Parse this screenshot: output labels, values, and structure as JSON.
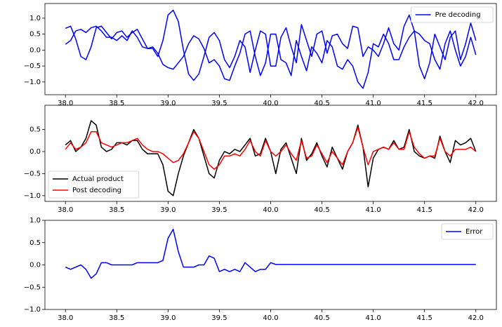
{
  "chart_data": [
    {
      "type": "line",
      "legend": "upper right",
      "x": [
        38.0,
        38.05,
        38.1,
        38.15,
        38.2,
        38.25,
        38.3,
        38.35,
        38.4,
        38.45,
        38.5,
        38.55,
        38.6,
        38.65,
        38.7,
        38.75,
        38.8,
        38.85,
        38.9,
        38.95,
        39.0,
        39.05,
        39.1,
        39.15,
        39.2,
        39.25,
        39.3,
        39.35,
        39.4,
        39.45,
        39.5,
        39.55,
        39.6,
        39.65,
        39.7,
        39.75,
        39.8,
        39.85,
        39.9,
        39.95,
        40.0,
        40.05,
        40.1,
        40.15,
        40.2,
        40.25,
        40.3,
        40.35,
        40.4,
        40.45,
        40.5,
        40.55,
        40.6,
        40.65,
        40.7,
        40.75,
        40.8,
        40.85,
        40.9,
        40.95,
        41.0,
        41.05,
        41.1,
        41.15,
        41.2,
        41.25,
        41.3,
        41.35,
        41.4,
        41.45,
        41.5,
        41.55,
        41.6,
        41.65,
        41.7,
        41.75,
        41.8,
        41.85,
        41.9,
        41.95,
        42.0
      ],
      "series": [
        {
          "name": "Pre decoding",
          "color": "#0000ff",
          "values": [
            0.68,
            0.75,
            0.35,
            -0.2,
            -0.3,
            0.1,
            0.7,
            0.75,
            0.55,
            0.35,
            0.55,
            0.6,
            0.4,
            0.55,
            0.65,
            0.35,
            0.05,
            0.05,
            -0.2,
            0.3,
            1.1,
            1.25,
            0.9,
            0.0,
            -0.75,
            -0.95,
            -0.75,
            -0.2,
            0.4,
            0.55,
            0.3,
            -0.3,
            -0.55,
            -0.2,
            0.3,
            0.1,
            -0.7,
            0.0,
            0.6,
            0.5,
            -0.5,
            -0.5,
            0.4,
            0.7,
            0.1,
            -0.4,
            0.8,
            0.3,
            -0.2,
            0.5,
            0.6,
            -0.1,
            0.45,
            0.5,
            0.2,
            0.05,
            0.75,
            0.7,
            -0.2,
            0.1,
            0.0,
            -0.2,
            0.2,
            0.7,
            0.2,
            0.0,
            0.75,
            1.1,
            0.6,
            -0.5,
            -0.9,
            -0.4,
            0.5,
            0.1,
            -0.3,
            0.4,
            0.6,
            -0.3,
            0.2,
            0.85,
            0.3
          ]
        },
        {
          "color": "#0000ff",
          "values": [
            0.18,
            0.3,
            0.6,
            0.65,
            0.55,
            0.7,
            0.75,
            0.6,
            0.4,
            0.4,
            0.3,
            0.45,
            0.3,
            0.6,
            0.4,
            0.1,
            0.05,
            0.1,
            -0.1,
            -0.45,
            -0.55,
            -0.6,
            -0.4,
            -0.2,
            0.2,
            0.45,
            0.35,
            0.05,
            -0.4,
            -0.3,
            -0.5,
            -0.9,
            -0.95,
            -0.5,
            -0.1,
            0.5,
            0.6,
            -0.2,
            -0.8,
            -0.4,
            0.5,
            0.5,
            -0.3,
            -0.4,
            -0.8,
            0.3,
            -0.2,
            -0.65,
            0.1,
            -0.1,
            -0.4,
            0.3,
            0.1,
            -0.5,
            -0.6,
            -0.3,
            -0.5,
            -1.0,
            -1.2,
            -0.7,
            0.2,
            0.1,
            0.5,
            0.2,
            -0.3,
            -0.3,
            0.1,
            0.4,
            0.6,
            0.5,
            0.3,
            0.2,
            -0.3,
            -0.6,
            0.2,
            0.6,
            0.0,
            -0.5,
            -0.2,
            0.4,
            -0.15
          ]
        }
      ],
      "xlim": [
        37.8,
        42.2
      ],
      "xticks": [
        {
          "value": 38,
          "label": "38.0"
        },
        {
          "value": 38.5,
          "label": "38.5"
        },
        {
          "value": 39,
          "label": "39.0"
        },
        {
          "value": 39.5,
          "label": "39.5"
        },
        {
          "value": 40,
          "label": "40.0"
        },
        {
          "value": 40.5,
          "label": "40.5"
        },
        {
          "value": 41,
          "label": "41.0"
        },
        {
          "value": 41.5,
          "label": "41.5"
        },
        {
          "value": 42,
          "label": "42.0"
        }
      ],
      "ylim": [
        -1.4,
        1.46
      ],
      "yticks": [
        {
          "value": -1,
          "label": "−1.0"
        },
        {
          "value": -0.5,
          "label": "−0.5"
        },
        {
          "value": 0,
          "label": "0.0"
        },
        {
          "value": 0.5,
          "label": "0.5"
        },
        {
          "value": 1,
          "label": "1.0"
        }
      ]
    },
    {
      "type": "line",
      "legend": "lower left",
      "x": [
        38.0,
        38.05,
        38.1,
        38.15,
        38.2,
        38.25,
        38.3,
        38.35,
        38.4,
        38.45,
        38.5,
        38.55,
        38.6,
        38.65,
        38.7,
        38.75,
        38.8,
        38.85,
        38.9,
        38.95,
        39.0,
        39.05,
        39.1,
        39.15,
        39.2,
        39.25,
        39.3,
        39.35,
        39.4,
        39.45,
        39.5,
        39.55,
        39.6,
        39.65,
        39.7,
        39.75,
        39.8,
        39.85,
        39.9,
        39.95,
        40.0,
        40.05,
        40.1,
        40.15,
        40.2,
        40.25,
        40.3,
        40.35,
        40.4,
        40.45,
        40.5,
        40.55,
        40.6,
        40.65,
        40.7,
        40.75,
        40.8,
        40.85,
        40.9,
        40.95,
        41.0,
        41.05,
        41.1,
        41.15,
        41.2,
        41.25,
        41.3,
        41.35,
        41.4,
        41.45,
        41.5,
        41.55,
        41.6,
        41.65,
        41.7,
        41.75,
        41.8,
        41.85,
        41.9,
        41.95,
        42.0
      ],
      "series": [
        {
          "name": "Actual product",
          "color": "#000000",
          "values": [
            0.15,
            0.25,
            0.0,
            0.1,
            0.3,
            0.7,
            0.6,
            0.1,
            0.0,
            0.05,
            0.2,
            0.2,
            0.15,
            0.25,
            0.25,
            0.05,
            -0.05,
            -0.05,
            -0.05,
            -0.3,
            -0.9,
            -1.0,
            -0.5,
            -0.1,
            0.2,
            0.5,
            0.3,
            -0.1,
            -0.5,
            -0.6,
            -0.2,
            0.0,
            -0.05,
            0.05,
            0.0,
            0.15,
            0.3,
            -0.1,
            -0.05,
            0.3,
            0.0,
            -0.5,
            0.05,
            0.2,
            -0.15,
            -0.5,
            0.3,
            -0.2,
            -0.05,
            0.2,
            -0.1,
            -0.35,
            0.1,
            -0.15,
            -0.4,
            0.0,
            0.2,
            0.6,
            0.1,
            -0.8,
            -0.15,
            0.05,
            0.1,
            0.05,
            0.25,
            0.05,
            0.1,
            0.5,
            0.0,
            -0.1,
            -0.15,
            -0.1,
            -0.15,
            0.35,
            0.0,
            -0.25,
            0.25,
            0.15,
            0.2,
            0.3,
            0.0
          ]
        },
        {
          "name": "Post decoding",
          "color": "#ff0000",
          "values": [
            0.05,
            0.2,
            0.05,
            0.1,
            0.2,
            0.45,
            0.45,
            0.2,
            0.15,
            0.1,
            0.15,
            0.2,
            0.2,
            0.25,
            0.3,
            0.15,
            0.05,
            0.0,
            0.0,
            -0.05,
            -0.15,
            -0.25,
            -0.2,
            -0.05,
            0.2,
            0.45,
            0.3,
            0.0,
            -0.3,
            -0.4,
            -0.3,
            -0.1,
            -0.1,
            -0.05,
            -0.1,
            0.05,
            0.25,
            0.0,
            -0.1,
            0.25,
            0.0,
            -0.1,
            0.0,
            0.15,
            -0.05,
            -0.2,
            0.25,
            -0.15,
            -0.1,
            0.15,
            -0.05,
            -0.25,
            0.0,
            -0.15,
            -0.3,
            0.0,
            0.2,
            0.55,
            0.1,
            -0.3,
            0.0,
            0.05,
            0.1,
            0.05,
            0.2,
            0.05,
            0.05,
            0.45,
            0.1,
            -0.05,
            -0.15,
            -0.1,
            -0.1,
            0.3,
            0.0,
            -0.1,
            0.05,
            0.05,
            0.05,
            0.1,
            0.0
          ]
        }
      ],
      "xlim": [
        37.8,
        42.2
      ],
      "xticks": [
        {
          "value": 38,
          "label": "38.0"
        },
        {
          "value": 38.5,
          "label": "38.5"
        },
        {
          "value": 39,
          "label": "39.0"
        },
        {
          "value": 39.5,
          "label": "39.5"
        },
        {
          "value": 40,
          "label": "40.0"
        },
        {
          "value": 40.5,
          "label": "40.5"
        },
        {
          "value": 41,
          "label": "41.0"
        },
        {
          "value": 41.5,
          "label": "41.5"
        },
        {
          "value": 42,
          "label": "42.0"
        }
      ],
      "ylim": [
        -1.13,
        1.05
      ],
      "yticks": [
        {
          "value": -1,
          "label": "−1.0"
        },
        {
          "value": -0.5,
          "label": "−0.5"
        },
        {
          "value": 0,
          "label": "0.0"
        },
        {
          "value": 0.5,
          "label": "0.5"
        }
      ]
    },
    {
      "type": "line",
      "legend": "upper right",
      "x": [
        38.0,
        38.05,
        38.1,
        38.15,
        38.2,
        38.25,
        38.3,
        38.35,
        38.4,
        38.45,
        38.5,
        38.55,
        38.6,
        38.65,
        38.7,
        38.75,
        38.8,
        38.85,
        38.9,
        38.95,
        39.0,
        39.05,
        39.1,
        39.15,
        39.2,
        39.25,
        39.3,
        39.35,
        39.4,
        39.45,
        39.5,
        39.55,
        39.6,
        39.65,
        39.7,
        39.75,
        39.8,
        39.85,
        39.9,
        39.95,
        40.0,
        40.05,
        40.1,
        40.15,
        40.2,
        40.25,
        40.3,
        40.35,
        40.4,
        40.45,
        40.5,
        40.55,
        40.6,
        40.65,
        40.7,
        40.75,
        40.8,
        40.85,
        40.9,
        40.95,
        41.0,
        41.05,
        41.1,
        41.15,
        41.2,
        41.25,
        41.3,
        41.35,
        41.4,
        41.45,
        41.5,
        41.55,
        41.6,
        41.65,
        41.7,
        41.75,
        41.8,
        41.85,
        41.9,
        41.95,
        42.0
      ],
      "series": [
        {
          "name": "Error",
          "color": "#0000ff",
          "values": [
            -0.05,
            -0.1,
            -0.05,
            0.0,
            -0.1,
            -0.3,
            -0.2,
            0.05,
            0.05,
            0.0,
            0.0,
            0.0,
            0.0,
            0.0,
            0.05,
            0.05,
            0.05,
            0.05,
            0.05,
            0.1,
            0.6,
            0.8,
            0.3,
            -0.05,
            -0.05,
            -0.05,
            0.0,
            0.0,
            0.2,
            0.15,
            -0.15,
            -0.1,
            -0.15,
            -0.1,
            -0.15,
            0.05,
            -0.05,
            -0.15,
            -0.1,
            -0.1,
            0.05,
            0.01,
            0.01,
            0.01,
            0.01,
            0.01,
            0.01,
            0.01,
            0.01,
            0.01,
            0.01,
            0.01,
            0.01,
            0.01,
            0.01,
            0.01,
            0.01,
            0.01,
            0.01,
            0.01,
            0.01,
            0.01,
            0.01,
            0.01,
            0.01,
            0.01,
            0.01,
            0.01,
            0.01,
            0.01,
            0.01,
            0.01,
            0.01,
            0.01,
            0.01,
            0.01,
            0.01,
            0.01,
            0.01,
            0.01,
            0.01
          ]
        }
      ],
      "xlim": [
        37.8,
        42.2
      ],
      "xticks": [
        {
          "value": 38,
          "label": "38.0"
        },
        {
          "value": 38.5,
          "label": "38.5"
        },
        {
          "value": 39,
          "label": "39.0"
        },
        {
          "value": 39.5,
          "label": "39.5"
        },
        {
          "value": 40,
          "label": "40.0"
        },
        {
          "value": 40.5,
          "label": "40.5"
        },
        {
          "value": 41,
          "label": "41.0"
        },
        {
          "value": 41.5,
          "label": "41.5"
        },
        {
          "value": 42,
          "label": "42.0"
        }
      ],
      "ylim": [
        -1,
        1
      ],
      "yticks": [
        {
          "value": -1,
          "label": "−1.0"
        },
        {
          "value": -0.5,
          "label": "−0.5"
        },
        {
          "value": 0,
          "label": "0.0"
        },
        {
          "value": 0.5,
          "label": "0.5"
        },
        {
          "value": 1,
          "label": "1.0"
        }
      ]
    }
  ]
}
